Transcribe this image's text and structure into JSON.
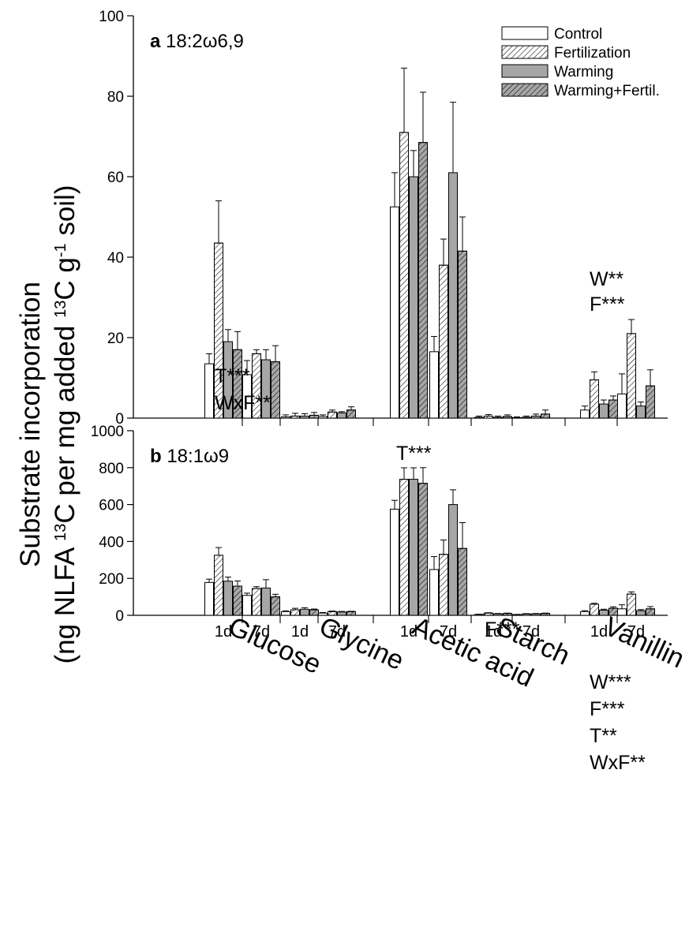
{
  "y_axis_label_line1": "Substrate incorporation",
  "y_axis_label_line2_parts": [
    "(ng NLFA ",
    "13",
    "C per mg added ",
    "13",
    "C g",
    "-1",
    " soil)"
  ],
  "legend": [
    {
      "name": "Control",
      "fill": "#ffffff",
      "hatch": false
    },
    {
      "name": "Fertilization",
      "fill": "#ffffff",
      "hatch": true
    },
    {
      "name": "Warming",
      "fill": "#a6a6a6",
      "hatch": false
    },
    {
      "name": "Warming+Fertil.",
      "fill": "#a6a6a6",
      "hatch": true
    }
  ],
  "chart_data": [
    {
      "type": "bar",
      "panel_letter": "a",
      "title": "18:2ω6,9",
      "ylim": [
        0,
        100
      ],
      "yticks": [
        0,
        20,
        40,
        60,
        80,
        100
      ],
      "substrates": [
        "Glucose",
        "Glycine",
        "Acetic acid",
        "Starch",
        "Vanillin"
      ],
      "times": [
        "1d",
        "7d"
      ],
      "series": [
        {
          "name": "Control",
          "values": [
            13.5,
            10.8,
            0.3,
            0.4,
            52.5,
            16.5,
            0.2,
            0.1,
            2.0,
            6.0
          ],
          "errors": [
            2.5,
            3.5,
            0.5,
            0.4,
            8.5,
            3.8,
            0.3,
            0.2,
            1.0,
            5.0
          ]
        },
        {
          "name": "Fertilization",
          "values": [
            43.5,
            16.0,
            0.5,
            1.5,
            71.0,
            38.0,
            0.5,
            0.2,
            9.5,
            21.0
          ],
          "errors": [
            10.5,
            1.0,
            0.7,
            0.5,
            16.0,
            6.5,
            0.4,
            0.3,
            2.0,
            3.5
          ]
        },
        {
          "name": "Warming",
          "values": [
            19.0,
            14.5,
            0.5,
            1.3,
            60.0,
            61.0,
            0.2,
            0.5,
            3.5,
            3.0
          ],
          "errors": [
            3.0,
            2.5,
            0.6,
            0.3,
            6.5,
            17.5,
            0.3,
            0.5,
            1.0,
            1.0
          ]
        },
        {
          "name": "Warming+Fertil.",
          "values": [
            17.0,
            14.0,
            0.7,
            2.0,
            68.5,
            41.5,
            0.4,
            1.0,
            4.5,
            8.0
          ],
          "errors": [
            4.5,
            4.0,
            0.7,
            0.8,
            12.5,
            8.5,
            0.4,
            1.0,
            1.0,
            4.0
          ]
        }
      ],
      "annotations": [
        {
          "substrate": "Vanillin",
          "lines": [
            "W**",
            "F***"
          ]
        }
      ]
    },
    {
      "type": "bar",
      "panel_letter": "b",
      "title": "18:1ω9",
      "ylim": [
        0,
        1000
      ],
      "yticks": [
        0,
        200,
        400,
        600,
        800,
        1000
      ],
      "substrates": [
        "Glucose",
        "Glycine",
        "Acetic acid",
        "Starch",
        "Vanillin"
      ],
      "times": [
        "1d",
        "7d"
      ],
      "series": [
        {
          "name": "Control",
          "values": [
            178,
            108,
            20,
            12,
            575,
            248,
            5,
            4,
            20,
            35
          ],
          "errors": [
            18,
            12,
            4,
            3,
            48,
            70,
            1,
            1,
            5,
            22
          ]
        },
        {
          "name": "Fertilization",
          "values": [
            325,
            145,
            30,
            20,
            737,
            330,
            12,
            7,
            60,
            115
          ],
          "errors": [
            42,
            10,
            8,
            3,
            62,
            78,
            2,
            2,
            5,
            12
          ]
        },
        {
          "name": "Warming",
          "values": [
            185,
            148,
            33,
            18,
            737,
            600,
            8,
            8,
            28,
            25
          ],
          "errors": [
            22,
            45,
            8,
            3,
            62,
            80,
            2,
            2,
            5,
            6
          ]
        },
        {
          "name": "Warming+Fertil.",
          "values": [
            158,
            100,
            30,
            20,
            715,
            362,
            10,
            10,
            38,
            35
          ],
          "errors": [
            28,
            14,
            4,
            2,
            85,
            140,
            2,
            2,
            8,
            12
          ]
        }
      ],
      "annotations": [
        {
          "substrate": "Glucose",
          "lines": [
            "T***",
            "WxF**"
          ]
        },
        {
          "substrate": "Acetic acid",
          "lines": [
            "T***"
          ]
        },
        {
          "substrate": "Starch",
          "lines": [
            "F***"
          ]
        },
        {
          "substrate": "Vanillin",
          "lines": [
            "W***",
            "F***",
            "T**",
            "WxF**"
          ]
        }
      ]
    }
  ]
}
